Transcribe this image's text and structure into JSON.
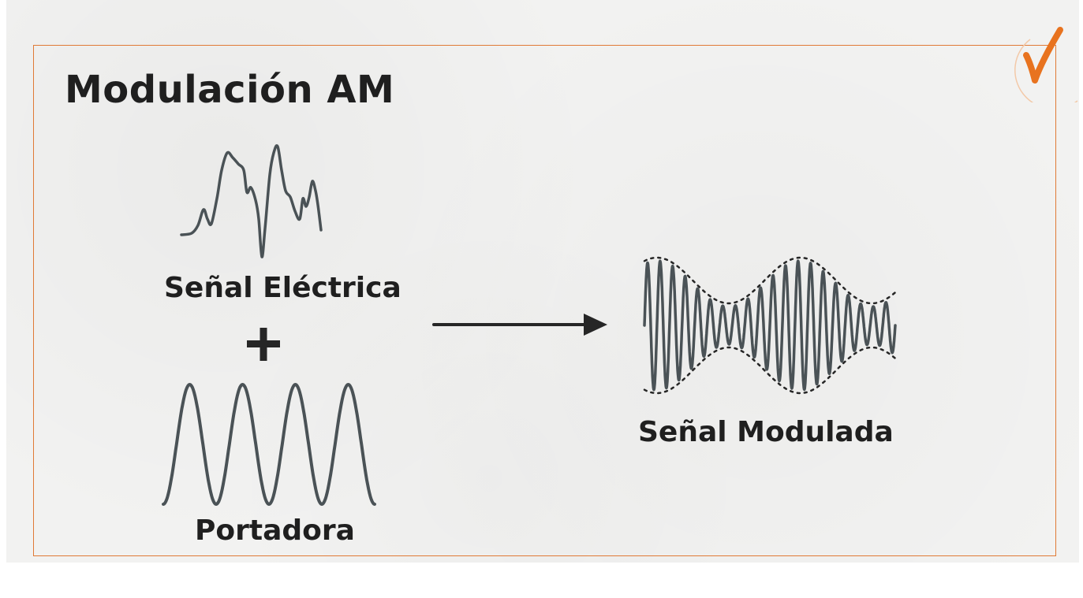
{
  "title": "Modulación AM",
  "labels": {
    "electric_signal": "Señal Eléctrica",
    "carrier": "Portadora",
    "modulated_signal": "Señal Modulada"
  },
  "icons": {
    "badge": "checkmark-icon",
    "operator": "plus-icon",
    "flow": "right-arrow-icon"
  },
  "colors": {
    "accent": "#e07a36",
    "wave": "#4a5256",
    "text": "#1f1f1f",
    "background": "#f2f2f1"
  }
}
